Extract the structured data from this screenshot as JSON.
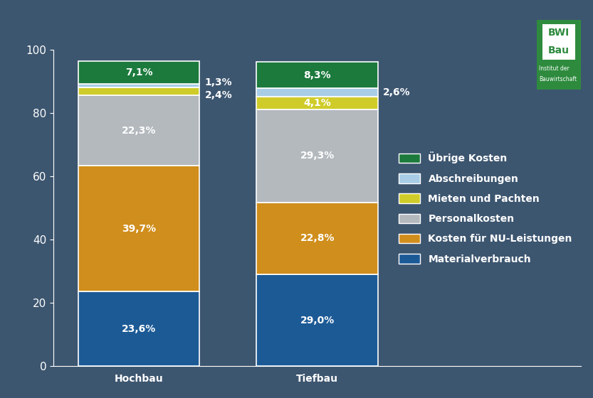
{
  "chart_data": {
    "type": "bar",
    "stacked": true,
    "data_labels": true,
    "legend": "center right",
    "categories": [
      "Hochbau",
      "Tiefbau"
    ],
    "ylim": [
      0,
      100
    ],
    "yticks": [
      0,
      20,
      40,
      60,
      80,
      100
    ],
    "series": [
      {
        "name": "Materialverbrauch",
        "color": "#1c5a96",
        "values": [
          23.6,
          29.0
        ],
        "value_labels": [
          "23,6%",
          "29,0%"
        ]
      },
      {
        "name": "Kosten für NU-Leistungen",
        "color": "#d08e1c",
        "values": [
          39.7,
          22.8
        ],
        "value_labels": [
          "39,7%",
          "22,8%"
        ]
      },
      {
        "name": "Personalkosten",
        "color": "#b4b9be",
        "values": [
          22.3,
          29.3
        ],
        "value_labels": [
          "22,3%",
          "29,3%"
        ]
      },
      {
        "name": "Mieten und Pachten",
        "color": "#cfcc2a",
        "values": [
          2.4,
          4.1
        ],
        "value_labels": [
          "2,4%",
          "4,1%"
        ]
      },
      {
        "name": "Abschreibungen",
        "color": "#a9cde6",
        "values": [
          1.3,
          2.6
        ],
        "value_labels": [
          "1,3%",
          "2,6%"
        ]
      },
      {
        "name": "Übrige Kosten",
        "color": "#1b7a3c",
        "values": [
          7.1,
          8.3
        ],
        "value_labels": [
          "7,1%",
          "8,3%"
        ]
      }
    ],
    "annotations": [
      "BWI",
      "Bau",
      "Institut der",
      "Bauwirtschaft"
    ]
  }
}
